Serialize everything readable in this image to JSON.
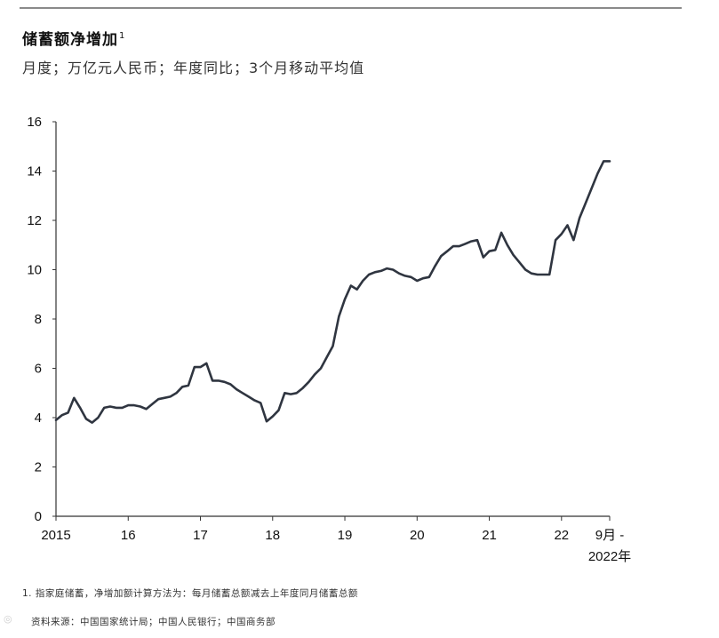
{
  "header": {
    "title": "储蓄额净增加",
    "title_footnote_marker": "1",
    "subtitle": "月度；万亿元人民币；年度同比；3个月移动平均值"
  },
  "footer": {
    "footnote": "1. 指家庭储蓄，净增加额计算方法为：每月储蓄总额减去上年度同月储蓄总额",
    "source": "资料来源：中国国家统计局；中国人民银行；中国商务部"
  },
  "chart_data": {
    "type": "line",
    "title": "储蓄额净增加",
    "ylim": [
      0,
      16
    ],
    "y_ticks": [
      0,
      2,
      4,
      6,
      8,
      10,
      12,
      14,
      16
    ],
    "x_ticks": [
      {
        "label": "2015",
        "x": 2015.0
      },
      {
        "label": "16",
        "x": 2016.0
      },
      {
        "label": "17",
        "x": 2017.0
      },
      {
        "label": "18",
        "x": 2018.0
      },
      {
        "label": "19",
        "x": 2019.0
      },
      {
        "label": "20",
        "x": 2020.0
      },
      {
        "label": "21",
        "x": 2021.0
      },
      {
        "label": "22",
        "x": 2022.0
      },
      {
        "label": "9月 -",
        "label2": "2022年",
        "x": 2022.667
      }
    ],
    "xlim": [
      2015.0,
      2022.667
    ],
    "grid": false,
    "line_color": "#2f3540",
    "series": [
      {
        "x": [
          2015.0,
          2015.083,
          2015.167,
          2015.25,
          2015.333,
          2015.417,
          2015.5,
          2015.583,
          2015.667,
          2015.75,
          2015.833,
          2015.917,
          2016.0,
          2016.083,
          2016.167,
          2016.25,
          2016.333,
          2016.417,
          2016.5,
          2016.583,
          2016.667,
          2016.75,
          2016.833,
          2016.917,
          2017.0,
          2017.083,
          2017.167,
          2017.25,
          2017.333,
          2017.417,
          2017.5,
          2017.583,
          2017.667,
          2017.75,
          2017.833,
          2017.917,
          2018.0,
          2018.083,
          2018.167,
          2018.25,
          2018.333,
          2018.417,
          2018.5,
          2018.583,
          2018.667,
          2018.75,
          2018.833,
          2018.917,
          2019.0,
          2019.083,
          2019.167,
          2019.25,
          2019.333,
          2019.417,
          2019.5,
          2019.583,
          2019.667,
          2019.75,
          2019.833,
          2019.917,
          2020.0,
          2020.083,
          2020.167,
          2020.25,
          2020.333,
          2020.417,
          2020.5,
          2020.583,
          2020.667,
          2020.75,
          2020.833,
          2020.917,
          2021.0,
          2021.083,
          2021.167,
          2021.25,
          2021.333,
          2021.417,
          2021.5,
          2021.583,
          2021.667,
          2021.75,
          2021.833,
          2021.917,
          2022.0,
          2022.083,
          2022.167,
          2022.25,
          2022.333,
          2022.417,
          2022.5,
          2022.583,
          2022.667
        ],
        "values": [
          3.9,
          4.1,
          4.2,
          4.8,
          4.4,
          3.95,
          3.8,
          4.0,
          4.4,
          4.45,
          4.4,
          4.4,
          4.5,
          4.5,
          4.45,
          4.35,
          4.55,
          4.75,
          4.8,
          4.85,
          5.0,
          5.25,
          5.3,
          6.05,
          6.05,
          6.2,
          5.5,
          5.5,
          5.45,
          5.35,
          5.15,
          5.0,
          4.85,
          4.7,
          4.6,
          3.85,
          4.05,
          4.3,
          5.0,
          4.95,
          5.0,
          5.2,
          5.45,
          5.75,
          6.0,
          6.45,
          6.9,
          8.1,
          8.8,
          9.35,
          9.2,
          9.55,
          9.8,
          9.9,
          9.95,
          10.05,
          10.0,
          9.85,
          9.75,
          9.7,
          9.55,
          9.65,
          9.7,
          10.15,
          10.55,
          10.75,
          10.95,
          10.95,
          11.05,
          11.15,
          11.2,
          10.5,
          10.75,
          10.8,
          11.5,
          11.0,
          10.6,
          10.3,
          10.0,
          9.85,
          9.8,
          9.8,
          9.8,
          11.2,
          11.45,
          11.8,
          11.2,
          12.1,
          12.7,
          13.3,
          13.9,
          14.4,
          14.4
        ]
      }
    ]
  }
}
